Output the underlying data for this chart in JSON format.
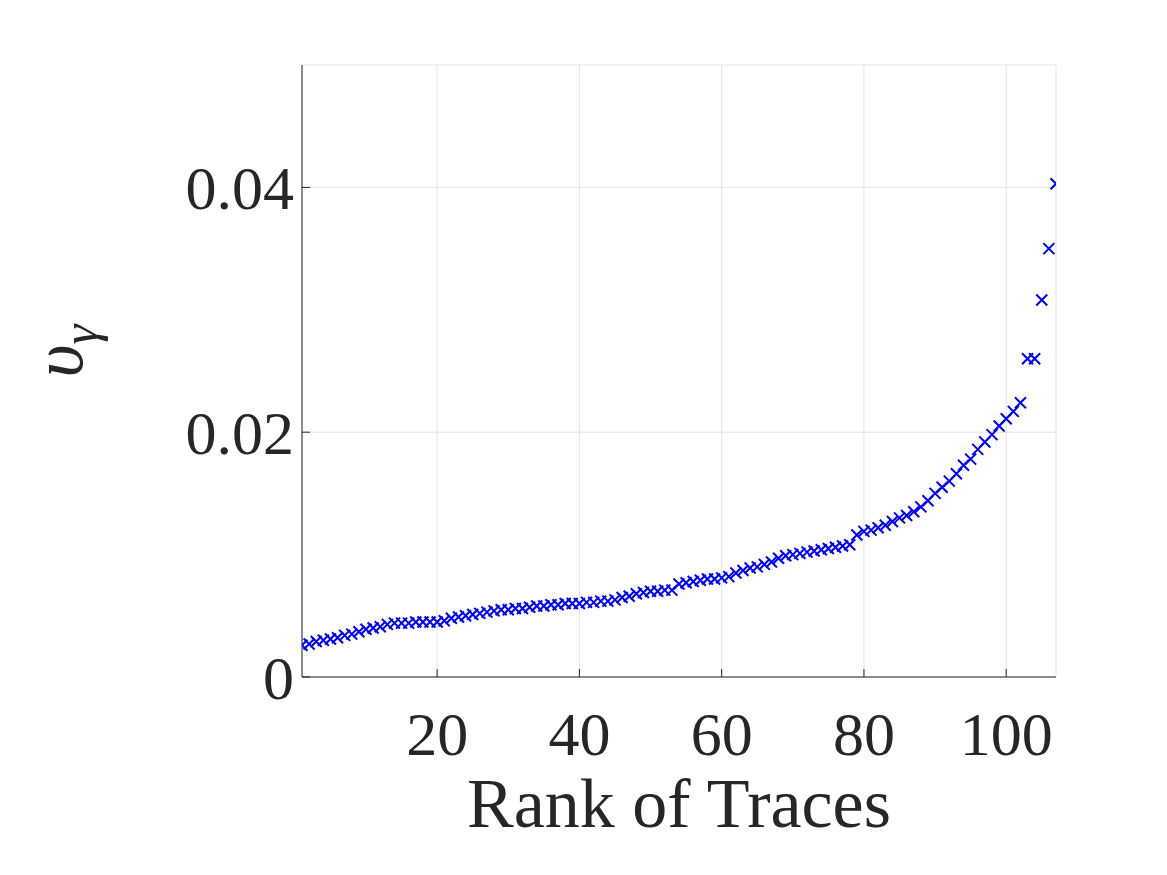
{
  "chart_data": {
    "type": "scatter",
    "xlabel": "Rank of Traces",
    "ylabel": "υ$_{γ}$",
    "x": [
      1,
      2,
      3,
      4,
      5,
      6,
      7,
      8,
      9,
      10,
      11,
      12,
      13,
      14,
      15,
      16,
      17,
      18,
      19,
      20,
      21,
      22,
      23,
      24,
      25,
      26,
      27,
      28,
      29,
      30,
      31,
      32,
      33,
      34,
      35,
      36,
      37,
      38,
      39,
      40,
      41,
      42,
      43,
      44,
      45,
      46,
      47,
      48,
      49,
      50,
      51,
      52,
      53,
      54,
      55,
      56,
      57,
      58,
      59,
      60,
      61,
      62,
      63,
      64,
      65,
      66,
      67,
      68,
      69,
      70,
      71,
      72,
      73,
      74,
      75,
      76,
      77,
      78,
      79,
      80,
      81,
      82,
      83,
      84,
      85,
      86,
      87,
      88,
      89,
      90,
      91,
      92,
      93,
      94,
      95,
      96,
      97,
      98,
      99,
      100,
      101,
      102,
      103,
      104,
      105,
      106,
      107
    ],
    "series": [
      {
        "color": "#0000ff",
        "values": [
          0.0026,
          0.0027,
          0.0029,
          0.003,
          0.0031,
          0.0032,
          0.0034,
          0.0035,
          0.0037,
          0.0039,
          0.004,
          0.0041,
          0.0043,
          0.0044,
          0.0044,
          0.0044,
          0.0045,
          0.0045,
          0.0045,
          0.0045,
          0.0046,
          0.0048,
          0.0049,
          0.005,
          0.0051,
          0.0052,
          0.0053,
          0.0054,
          0.0055,
          0.0055,
          0.0056,
          0.0056,
          0.0057,
          0.0058,
          0.0058,
          0.0059,
          0.0059,
          0.006,
          0.006,
          0.006,
          0.0061,
          0.0061,
          0.0062,
          0.0062,
          0.0063,
          0.0065,
          0.0066,
          0.0068,
          0.0069,
          0.007,
          0.007,
          0.0071,
          0.0071,
          0.0076,
          0.0077,
          0.0078,
          0.0079,
          0.008,
          0.008,
          0.0081,
          0.0082,
          0.0085,
          0.0087,
          0.0089,
          0.009,
          0.0092,
          0.0094,
          0.0097,
          0.0099,
          0.01,
          0.0101,
          0.0102,
          0.0103,
          0.0104,
          0.0105,
          0.0106,
          0.0107,
          0.0108,
          0.0116,
          0.0119,
          0.012,
          0.0122,
          0.0124,
          0.0127,
          0.013,
          0.0132,
          0.0135,
          0.0139,
          0.0144,
          0.015,
          0.0155,
          0.016,
          0.0166,
          0.0173,
          0.0178,
          0.0186,
          0.0192,
          0.0198,
          0.0205,
          0.0211,
          0.0217,
          0.0224,
          0.026,
          0.026,
          0.0308,
          0.035,
          0.0403
        ]
      }
    ],
    "xlim": [
      1,
      107
    ],
    "xticks": [
      20,
      40,
      60,
      80,
      100
    ],
    "ylim": [
      0,
      0.05
    ],
    "yticks": [
      0,
      0.02,
      0.04
    ],
    "grid": true,
    "marker": "cross",
    "legend": false
  }
}
